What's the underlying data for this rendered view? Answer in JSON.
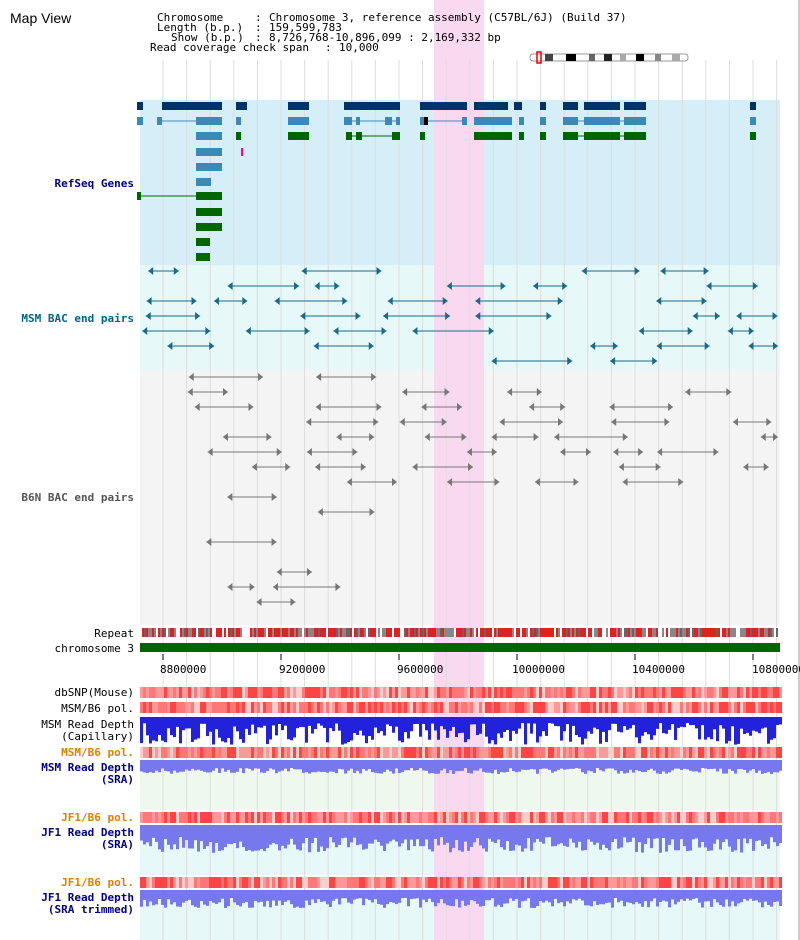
{
  "map_title": "Map View",
  "info": {
    "chromosome_key": "Chromosome",
    "chromosome_val": "Chromosome 3, reference assembly (C57BL/6J) (Build 37)",
    "length_key": "Length (b.p.)",
    "length_val": "159,599,783",
    "show_key": "Show (b.p.)",
    "show_val": "8,726,768-10,896,099 : 2,169,332 bp",
    "span_key": "Read coverage check span",
    "span_val": "10,000"
  },
  "tracks": {
    "refseq": "RefSeq Genes",
    "msm_bac": "MSM BAC end pairs",
    "b6n_bac": "B6N BAC end pairs",
    "repeat": "Repeat",
    "chromosome": "chromosome 3",
    "dbsnp": "dbSNP(Mouse)",
    "msm_b6_pol": "MSM/B6 pol.",
    "msm_rd_cap_1": "MSM Read Depth",
    "msm_rd_cap_2": "(Capillary)",
    "msm_b6_pol_2": "MSM/B6 pol.",
    "msm_rd_sra_1": "MSM Read Depth",
    "msm_rd_sra_2": "(SRA)",
    "jf1_b6_pol": "JF1/B6 pol.",
    "jf1_rd_sra_1": "JF1 Read Depth",
    "jf1_rd_sra_2": "(SRA)",
    "jf1_b6_pol_2": "JF1/B6 pol.",
    "jf1_rd_trim_1": "JF1 Read Depth",
    "jf1_rd_trim_2": "(SRA trimmed)"
  },
  "axis_ticks": [
    "8800000",
    "9200000",
    "9600000",
    "10000000",
    "10400000",
    "10800000"
  ],
  "colors": {
    "refseq_bg": "#d6eef8",
    "msm_bg": "#e6f8f8",
    "b6n_bg": "#f4f4f4",
    "highlight": "#f9d9f0",
    "chrom_bar": "#006600",
    "depth_blue": "#2222dd",
    "depth_light": "#7777ee"
  }
}
